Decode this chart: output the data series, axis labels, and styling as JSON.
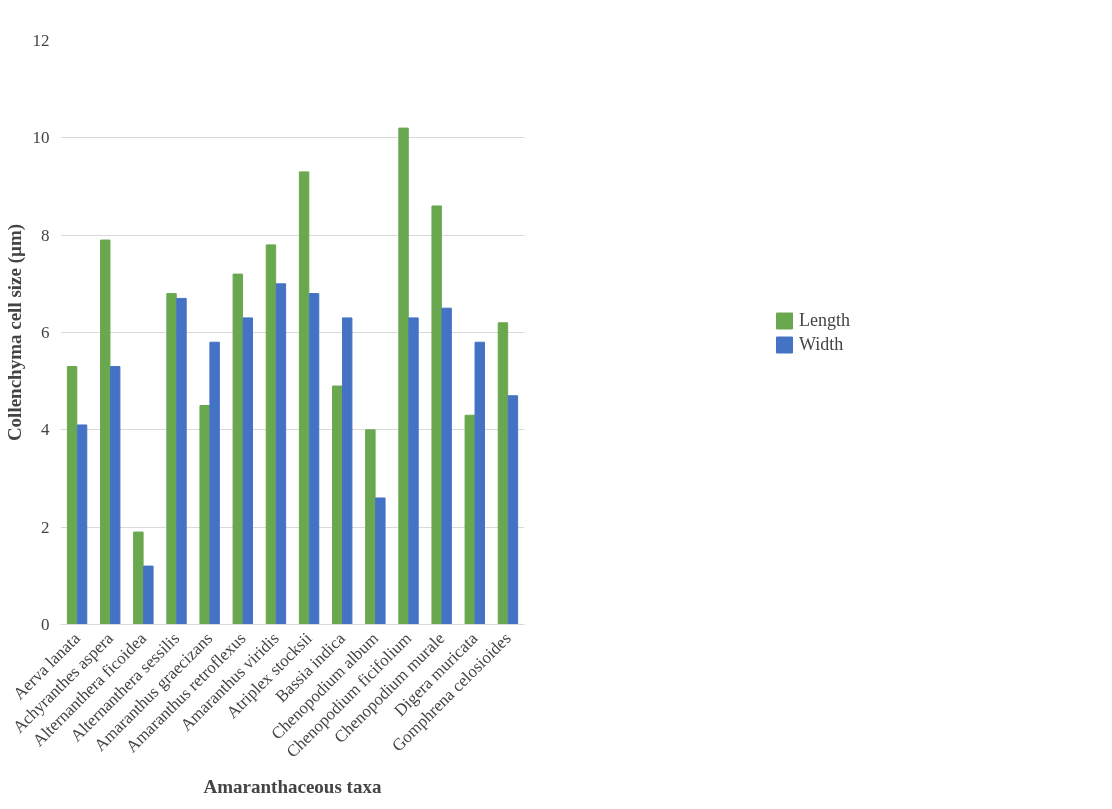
{
  "chart_data": {
    "type": "bar",
    "xlabel": "Amaranthaceous taxa",
    "ylabel": "Collenchyma cell size (µm)",
    "categories": [
      "Aerva lanata",
      "Achyranthes aspera",
      "Alternanthera ficoidea",
      "Alternanthera sessilis",
      "Amaranthus graecizans",
      "Amaranthus retroflexus",
      "Amaranthus viridis",
      "Atriplex stocksii",
      "Bassia indica",
      "Chenopodium album",
      "Chenopodium ficifolium",
      "Chenopodium murale",
      "Digera muricata",
      "Gomphrena celosioides"
    ],
    "series": [
      {
        "name": "Length",
        "color": "#6aa84f",
        "values": [
          5.3,
          7.9,
          1.9,
          6.8,
          4.5,
          7.2,
          7.8,
          9.3,
          4.9,
          4.0,
          10.2,
          8.6,
          4.3,
          6.2
        ]
      },
      {
        "name": "Width",
        "color": "#4472c4",
        "values": [
          4.1,
          5.3,
          1.2,
          6.7,
          5.8,
          6.3,
          7.0,
          6.8,
          6.3,
          2.6,
          6.3,
          6.5,
          5.8,
          4.7
        ]
      }
    ],
    "ylim": [
      0,
      12
    ],
    "yticks": [
      0,
      2,
      4,
      6,
      8,
      10,
      12
    ],
    "grid": "y",
    "legend": "right"
  }
}
